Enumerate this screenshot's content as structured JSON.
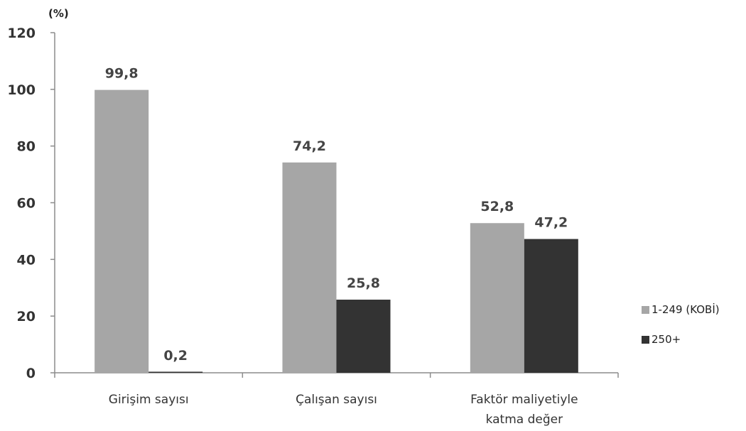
{
  "chart_data": {
    "type": "bar",
    "unit_label": "(%)",
    "categories": [
      [
        "Girişim sayısı"
      ],
      [
        "Çalışan sayısı"
      ],
      [
        "Faktör maliyetiyle",
        "katma değer"
      ]
    ],
    "series": [
      {
        "name": "1-249 (KOBİ)",
        "values": [
          99.8,
          74.2,
          52.8
        ],
        "labels": [
          "99,8",
          "74,2",
          "52,8"
        ],
        "color": "#a6a6a6"
      },
      {
        "name": "250+",
        "values": [
          0.2,
          25.8,
          47.2
        ],
        "labels": [
          "0,2",
          "25,8",
          "47,2"
        ],
        "color": "#333333"
      }
    ],
    "ylim": [
      0,
      120
    ],
    "yticks": [
      0,
      20,
      40,
      60,
      80,
      100,
      120
    ],
    "grid": false,
    "legend_position": "right"
  }
}
